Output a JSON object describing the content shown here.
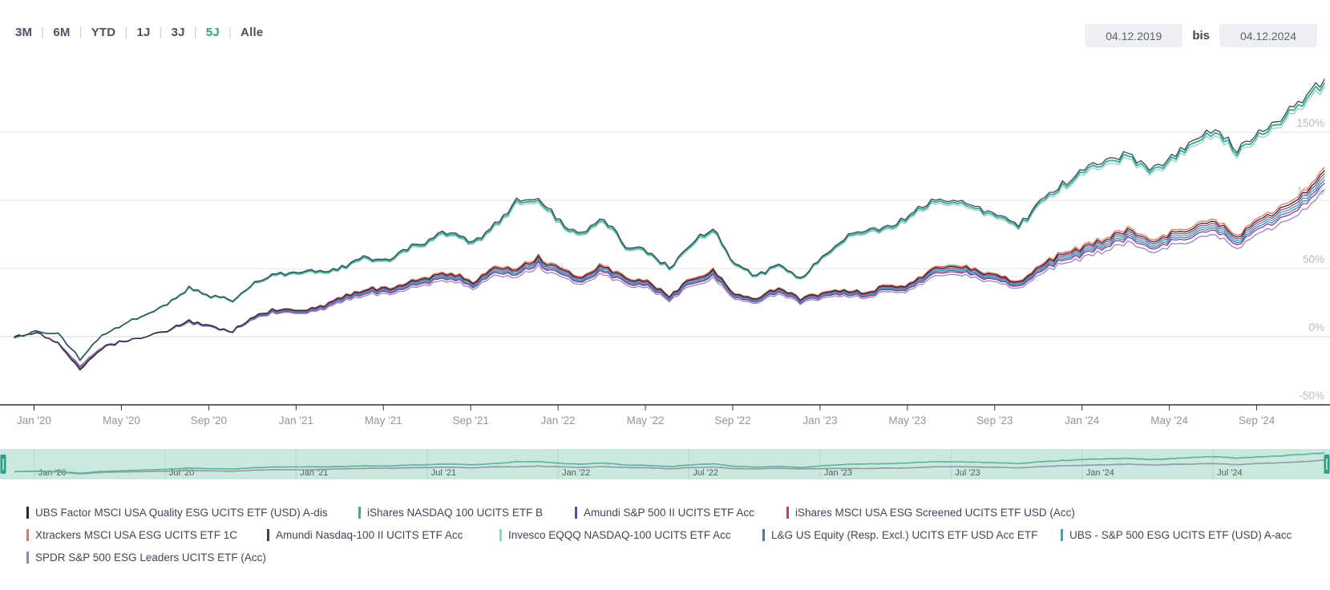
{
  "header": {
    "ranges": [
      "3M",
      "6M",
      "YTD",
      "1J",
      "3J",
      "5J",
      "Alle"
    ],
    "active_range": "5J",
    "date_from": "04.12.2019",
    "date_separator_label": "bis",
    "date_to": "04.12.2024"
  },
  "colors": {
    "accent_teal": "#2fa08c",
    "grid_line": "#e4e6ea",
    "zero_line": "#d2d5db",
    "axis_line": "#2d3240",
    "x_tick_text": "#8f95a3",
    "y_tick_text": "#b4bac4",
    "navigator_bg": "#cbe8dc",
    "navigator_line_teal": "#5bb2a0",
    "navigator_line_gray": "#8e99ab",
    "navigator_handle": "#2ba18a",
    "navigator_label": "#4a635e"
  },
  "chart_data": {
    "type": "line",
    "title": "",
    "unit": "percent return, indexed to 04.12.2019 = 0%",
    "x": {
      "start": "2019-12-04",
      "end": "2024-12-04",
      "points": 61,
      "freq": "monthly"
    },
    "x_axis_tick_labels": [
      "Jan '20",
      "May '20",
      "Sep '20",
      "Jan '21",
      "May '21",
      "Sep '21",
      "Jan '22",
      "May '22",
      "Sep '22",
      "Jan '23",
      "May '23",
      "Sep '23",
      "Jan '24",
      "May '24",
      "Sep '24"
    ],
    "y_axis": {
      "tick_labels": [
        "150%",
        "100%",
        "50%",
        "0%",
        "-50%"
      ],
      "tick_values": [
        150,
        100,
        50,
        0,
        -50
      ],
      "ylim": [
        -50,
        200
      ],
      "grid": true,
      "side": "right"
    },
    "navigator_tick_labels": [
      "Jan '20",
      "Jul '20",
      "Jan '21",
      "Jul '21",
      "Jan '22",
      "Jul '22",
      "Jan '23",
      "Jul '23",
      "Jan '24",
      "Jul '24"
    ],
    "base_curves": {
      "nasdaq100": [
        0,
        4,
        2,
        -16,
        1,
        9,
        16,
        23,
        36,
        29,
        27,
        39,
        45,
        47,
        48,
        50,
        57,
        55,
        64,
        70,
        77,
        67,
        81,
        98,
        100,
        83,
        74,
        86,
        66,
        62,
        50,
        68,
        80,
        52,
        44,
        53,
        42,
        58,
        72,
        76,
        80,
        88,
        98,
        100,
        94,
        88,
        80,
        98,
        110,
        122,
        128,
        132,
        120,
        130,
        142,
        152,
        134,
        150,
        158,
        172,
        186
      ],
      "sp500": [
        0,
        3,
        -4,
        -24,
        -8,
        -3,
        0,
        4,
        11,
        7,
        4,
        15,
        19,
        18,
        21,
        27,
        33,
        33,
        37,
        41,
        45,
        38,
        48,
        47,
        55,
        47,
        42,
        50,
        40,
        39,
        28,
        40,
        46,
        30,
        27,
        34,
        26,
        30,
        33,
        30,
        36,
        36,
        46,
        50,
        46,
        42,
        38,
        50,
        58,
        62,
        68,
        74,
        66,
        72,
        76,
        82,
        68,
        84,
        88,
        100,
        116
      ]
    },
    "series": [
      {
        "name": "UBS Factor MSCI USA Quality ESG UCITS ETF (USD) A-dis",
        "color": "#232945",
        "curve": "sp500",
        "scale": 1.05
      },
      {
        "name": "iShares NASDAQ 100 UCITS ETF B",
        "color": "#3bab97",
        "curve": "nasdaq100",
        "scale": 1.0
      },
      {
        "name": "Amundi S&P 500 II UCITS ETF Acc",
        "color": "#7d3f98",
        "curve": "sp500",
        "scale": 0.97
      },
      {
        "name": "iShares MSCI USA ESG Screened UCITS ETF USD (Acc)",
        "color": "#c43a63",
        "curve": "sp500",
        "scale": 1.03
      },
      {
        "name": "Xtrackers MSCI USA ESG UCITS ETF 1C",
        "color": "#e07a52",
        "curve": "sp500",
        "scale": 1.07
      },
      {
        "name": "Amundi Nasdaq-100 II UCITS ETF Acc",
        "color": "#3e4557",
        "curve": "nasdaq100",
        "scale": 1.015
      },
      {
        "name": "Invesco EQQQ NASDAQ-100 UCITS ETF Acc",
        "color": "#8ed3c2",
        "curve": "nasdaq100",
        "scale": 0.985
      },
      {
        "name": "L&G US Equity (Resp. Excl.) UCITS ETF USD Acc ETF",
        "color": "#4e79ae",
        "curve": "sp500",
        "scale": 0.99
      },
      {
        "name": "UBS - S&P 500 ESG UCITS ETF (USD) A-acc",
        "color": "#2fa9c4",
        "curve": "sp500",
        "scale": 1.01
      },
      {
        "name": "SPDR S&P 500 ESG Leaders UCITS ETF (Acc)",
        "color": "#9e7fc5",
        "curve": "sp500",
        "scale": 0.93
      }
    ]
  }
}
